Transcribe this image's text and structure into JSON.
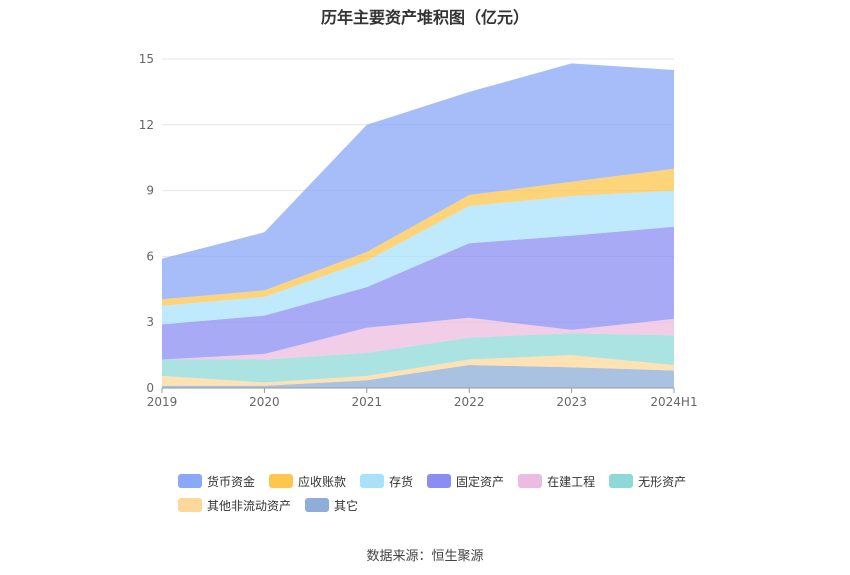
{
  "chart_data": {
    "type": "area",
    "stacked": true,
    "title": "历年主要资产堆积图（亿元）",
    "categories": [
      "2019",
      "2020",
      "2021",
      "2022",
      "2023",
      "2024H1"
    ],
    "yticks": [
      0,
      3,
      6,
      9,
      12,
      15
    ],
    "ylim": [
      0,
      15.5
    ],
    "grid": true,
    "legend_position": "bottom",
    "series": [
      {
        "name": "其它",
        "color": "#8eaed8",
        "values": [
          0.1,
          0.1,
          0.35,
          1.05,
          0.95,
          0.8
        ]
      },
      {
        "name": "其他非流动资产",
        "color": "#fdd89a",
        "values": [
          0.45,
          0.15,
          0.2,
          0.25,
          0.55,
          0.25
        ]
      },
      {
        "name": "无形资产",
        "color": "#8fd8d8",
        "values": [
          0.75,
          1.05,
          1.05,
          1.0,
          1.0,
          1.35
        ]
      },
      {
        "name": "在建工程",
        "color": "#ecbce0",
        "values": [
          0.0,
          0.25,
          1.15,
          0.9,
          0.15,
          0.75
        ]
      },
      {
        "name": "固定资产",
        "color": "#8b8df3",
        "values": [
          1.6,
          1.75,
          1.85,
          3.4,
          4.3,
          4.2
        ]
      },
      {
        "name": "存货",
        "color": "#a9e1fb",
        "values": [
          0.85,
          0.85,
          1.2,
          1.7,
          1.8,
          1.65
        ]
      },
      {
        "name": "应收账款",
        "color": "#fdc64e",
        "values": [
          0.3,
          0.3,
          0.4,
          0.5,
          0.65,
          1.0
        ]
      },
      {
        "name": "货币资金",
        "color": "#8aa7f8",
        "values": [
          1.85,
          2.65,
          5.8,
          4.7,
          5.4,
          4.5
        ]
      }
    ],
    "legend_order": [
      "货币资金",
      "应收账款",
      "存货",
      "固定资产",
      "在建工程",
      "无形资产",
      "其他非流动资产",
      "其它"
    ]
  },
  "source": "数据来源：恒生聚源"
}
